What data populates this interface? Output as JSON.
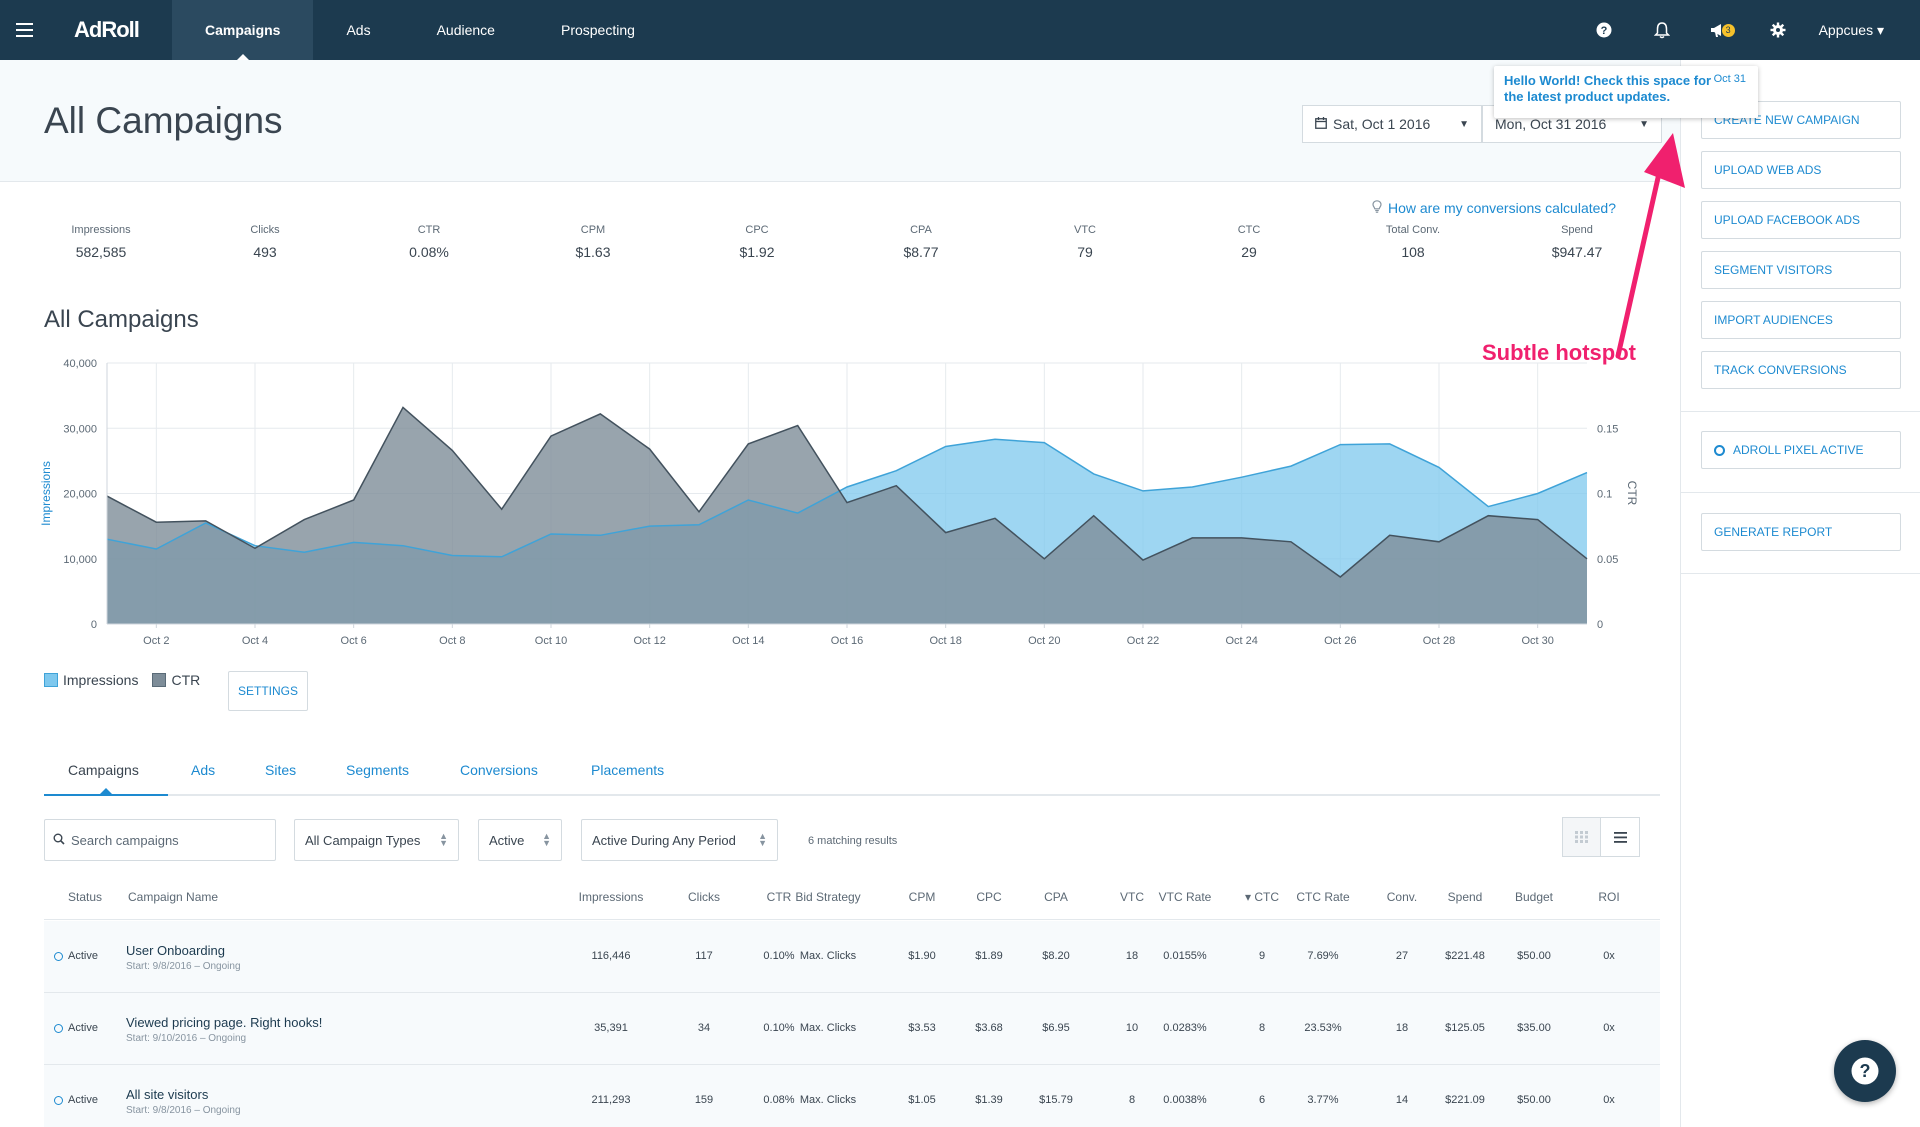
{
  "nav": {
    "logo": "AdRoll",
    "tabs": [
      "Campaigns",
      "Ads",
      "Audience",
      "Prospecting"
    ],
    "user": "Appcues ▾",
    "notification_badge": "3"
  },
  "header": {
    "title": "All Campaigns",
    "start_date": "Sat, Oct 1 2016",
    "end_date": "Mon, Oct 31 2016"
  },
  "popover": {
    "text": "Hello World! Check this space for the latest product updates.",
    "date": "Oct 31"
  },
  "sidebar": {
    "buttons": [
      "CREATE NEW CAMPAIGN",
      "UPLOAD WEB ADS",
      "UPLOAD FACEBOOK ADS",
      "SEGMENT VISITORS",
      "IMPORT AUDIENCES",
      "TRACK CONVERSIONS"
    ],
    "pixel_status": "ADROLL PIXEL ACTIVE",
    "report_button": "GENERATE REPORT"
  },
  "conversions_link": "How are my conversions calculated?",
  "stats": [
    {
      "label": "Impressions",
      "value": "582,585"
    },
    {
      "label": "Clicks",
      "value": "493"
    },
    {
      "label": "CTR",
      "value": "0.08%"
    },
    {
      "label": "CPM",
      "value": "$1.63"
    },
    {
      "label": "CPC",
      "value": "$1.92"
    },
    {
      "label": "CPA",
      "value": "$8.77"
    },
    {
      "label": "VTC",
      "value": "79"
    },
    {
      "label": "CTC",
      "value": "29"
    },
    {
      "label": "Total Conv.",
      "value": "108"
    },
    {
      "label": "Spend",
      "value": "$947.47"
    }
  ],
  "annotation": "Subtle hotspot",
  "chart_data": {
    "type": "area",
    "title": "All Campaigns",
    "xlabel": "",
    "ylabel": "Impressions",
    "y2label": "CTR",
    "ylim": [
      0,
      40000
    ],
    "y2lim": [
      0,
      0.2
    ],
    "y_ticks": [
      "0",
      "10,000",
      "20,000",
      "30,000",
      "40,000"
    ],
    "y2_ticks": [
      "0",
      "0.05",
      "0.1",
      "0.15"
    ],
    "x_ticks": [
      "Oct 2",
      "Oct 4",
      "Oct 6",
      "Oct 8",
      "Oct 10",
      "Oct 12",
      "Oct 14",
      "Oct 16",
      "Oct 18",
      "Oct 20",
      "Oct 22",
      "Oct 24",
      "Oct 26",
      "Oct 28",
      "Oct 30"
    ],
    "x": [
      1,
      2,
      3,
      4,
      5,
      6,
      7,
      8,
      9,
      10,
      11,
      12,
      13,
      14,
      15,
      16,
      17,
      18,
      19,
      20,
      21,
      22,
      23,
      24,
      25,
      26,
      27,
      28,
      29,
      30,
      31
    ],
    "grid": true,
    "legend": "bottom-left",
    "series": [
      {
        "name": "Impressions",
        "axis": "left",
        "color": "#7ec8ee",
        "values": [
          13000,
          11500,
          15500,
          12000,
          11000,
          12500,
          12000,
          10500,
          10300,
          13800,
          13600,
          15000,
          15200,
          19000,
          17000,
          21000,
          23500,
          27200,
          28300,
          27800,
          23000,
          20400,
          21000,
          22500,
          24200,
          27500,
          27600,
          24000,
          18000,
          20000,
          23200
        ]
      },
      {
        "name": "CTR",
        "axis": "right",
        "color": "#7e8d99",
        "values": [
          0.098,
          0.078,
          0.079,
          0.058,
          0.08,
          0.095,
          0.166,
          0.133,
          0.088,
          0.144,
          0.161,
          0.134,
          0.086,
          0.138,
          0.152,
          0.093,
          0.106,
          0.07,
          0.081,
          0.05,
          0.083,
          0.049,
          0.066,
          0.066,
          0.063,
          0.036,
          0.068,
          0.063,
          0.083,
          0.08,
          0.05
        ]
      }
    ]
  },
  "legend": {
    "impressions": "Impressions",
    "ctr": "CTR",
    "settings": "SETTINGS"
  },
  "tabs": [
    "Campaigns",
    "Ads",
    "Sites",
    "Segments",
    "Conversions",
    "Placements"
  ],
  "filters": {
    "search_placeholder": "Search campaigns",
    "campaign_type": "All Campaign Types",
    "status": "Active",
    "period": "Active During Any Period",
    "matching": "6 matching results"
  },
  "table": {
    "columns": [
      "Status",
      "Campaign Name",
      "Impressions",
      "Clicks",
      "CTR",
      "Bid Strategy",
      "CPM",
      "CPC",
      "CPA",
      "VTC",
      "VTC Rate",
      "▾ CTC",
      "CTC Rate",
      "Conv.",
      "Spend",
      "Budget",
      "ROI"
    ],
    "rows": [
      {
        "status": "Active",
        "name": "User Onboarding",
        "start": "Start: 9/8/2016 – Ongoing",
        "impressions": "116,446",
        "clicks": "117",
        "ctr": "0.10%",
        "bid": "Max. Clicks",
        "cpm": "$1.90",
        "cpc": "$1.89",
        "cpa": "$8.20",
        "vtc": "18",
        "vtc_rate": "0.0155%",
        "ctc": "9",
        "ctc_rate": "7.69%",
        "conv": "27",
        "spend": "$221.48",
        "budget": "$50.00",
        "roi": "0x"
      },
      {
        "status": "Active",
        "name": "Viewed pricing page. Right hooks!",
        "start": "Start: 9/10/2016 – Ongoing",
        "impressions": "35,391",
        "clicks": "34",
        "ctr": "0.10%",
        "bid": "Max. Clicks",
        "cpm": "$3.53",
        "cpc": "$3.68",
        "cpa": "$6.95",
        "vtc": "10",
        "vtc_rate": "0.0283%",
        "ctc": "8",
        "ctc_rate": "23.53%",
        "conv": "18",
        "spend": "$125.05",
        "budget": "$35.00",
        "roi": "0x"
      },
      {
        "status": "Active",
        "name": "All site visitors",
        "start": "Start: 9/8/2016 – Ongoing",
        "impressions": "211,293",
        "clicks": "159",
        "ctr": "0.08%",
        "bid": "Max. Clicks",
        "cpm": "$1.05",
        "cpc": "$1.39",
        "cpa": "$15.79",
        "vtc": "8",
        "vtc_rate": "0.0038%",
        "ctc": "6",
        "ctc_rate": "3.77%",
        "conv": "14",
        "spend": "$221.09",
        "budget": "$50.00",
        "roi": "0x"
      }
    ]
  }
}
